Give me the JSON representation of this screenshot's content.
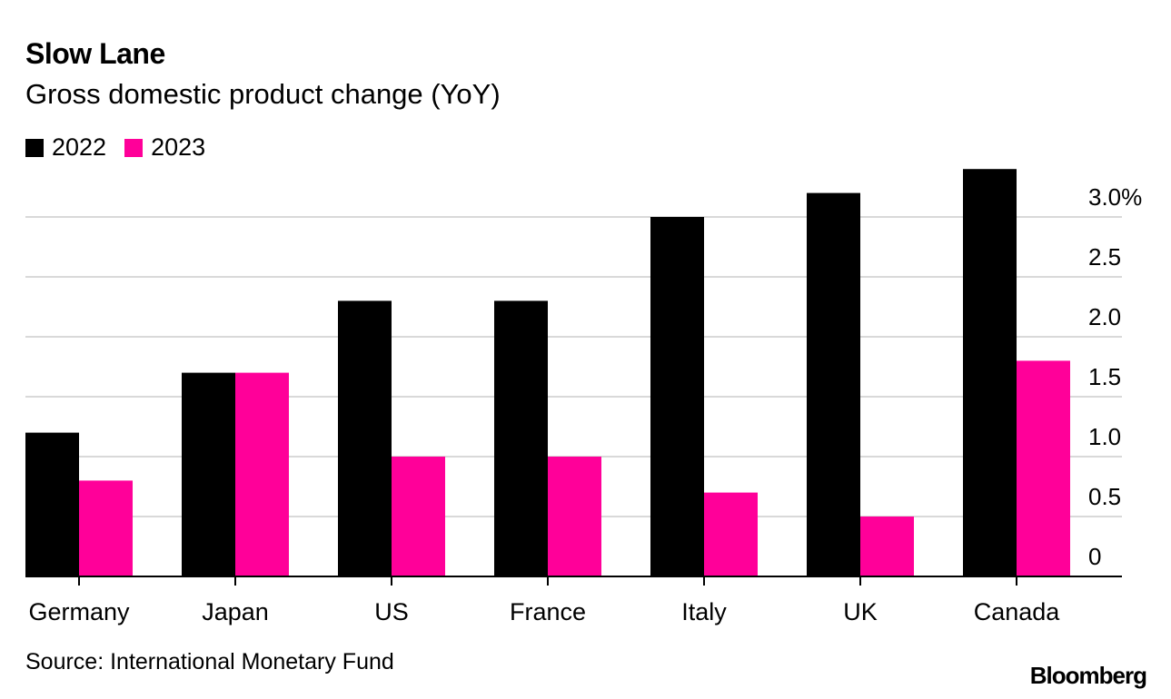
{
  "colors": {
    "series_2022": "#000000",
    "series_2023": "#ff0099",
    "grid": "#d9d9d9",
    "axis": "#000000"
  },
  "footer": {
    "source": "Source: International Monetary Fund",
    "brand": "Bloomberg"
  },
  "chart_data": {
    "type": "bar",
    "title": "Slow Lane",
    "subtitle": "Gross domestic product change (YoY)",
    "categories": [
      "Germany",
      "Japan",
      "US",
      "France",
      "Italy",
      "UK",
      "Canada"
    ],
    "series": [
      {
        "name": "2022",
        "values": [
          1.2,
          1.7,
          2.3,
          2.3,
          3.0,
          3.2,
          3.4
        ]
      },
      {
        "name": "2023",
        "values": [
          0.8,
          1.7,
          1.0,
          1.0,
          0.7,
          0.5,
          1.8
        ]
      }
    ],
    "y_ticks": [
      0,
      0.5,
      1.0,
      1.5,
      2.0,
      2.5,
      3.0
    ],
    "y_tick_labels": [
      "0",
      "0.5",
      "1.0",
      "1.5",
      "2.0",
      "2.5",
      "3.0%"
    ],
    "ylim": [
      0,
      3.5
    ],
    "xlabel": "",
    "ylabel": "",
    "legend_position": "top-left",
    "grid": true
  }
}
